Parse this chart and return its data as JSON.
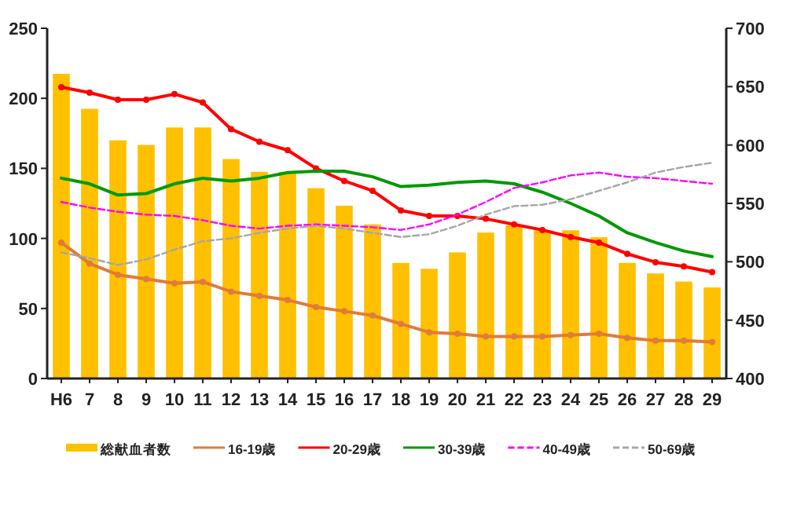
{
  "chart_data": {
    "type": "line",
    "categories": [
      "H6",
      "7",
      "8",
      "9",
      "10",
      "11",
      "12",
      "13",
      "14",
      "15",
      "16",
      "17",
      "18",
      "19",
      "20",
      "21",
      "22",
      "23",
      "24",
      "25",
      "26",
      "27",
      "28",
      "29"
    ],
    "ylim": [
      0,
      250
    ],
    "yticks": [
      0,
      50,
      100,
      150,
      200,
      250
    ],
    "y2lim": [
      400,
      700
    ],
    "y2ticks": [
      400,
      450,
      500,
      550,
      600,
      650,
      700
    ],
    "grid": false,
    "legend": "bottom",
    "series": [
      {
        "name": "総献血者数",
        "type": "bar",
        "axis": "y2",
        "color": "#ffc000",
        "values": [
          661,
          631,
          604,
          600,
          615,
          615,
          588,
          577,
          577,
          563,
          548,
          532,
          499,
          494,
          508,
          525,
          531,
          527,
          527,
          521,
          499,
          490,
          483,
          478
        ]
      },
      {
        "name": "16-19歳",
        "color": "#e07b39",
        "marker": "circle",
        "line_style": "solid",
        "values": [
          97,
          82,
          74,
          71,
          68,
          69,
          62,
          59,
          56,
          51,
          48,
          45,
          39,
          33,
          32,
          30,
          30,
          30,
          31,
          32,
          29,
          27,
          27,
          26
        ]
      },
      {
        "name": "20-29歳",
        "color": "#ff0000",
        "marker": "circle",
        "line_style": "solid",
        "values": [
          208,
          204,
          199,
          199,
          203,
          197,
          178,
          169,
          163,
          150,
          141,
          134,
          120,
          116,
          116,
          114,
          110,
          106,
          101,
          97,
          89,
          83,
          80,
          76
        ]
      },
      {
        "name": "30-39歳",
        "color": "#009900",
        "marker": "none",
        "line_style": "solid",
        "values": [
          143,
          139,
          131,
          132,
          139,
          143,
          141,
          143,
          147,
          148,
          148,
          144,
          137,
          138,
          140,
          141,
          139,
          133,
          125,
          116,
          104,
          97,
          91,
          87
        ]
      },
      {
        "name": "40-49歳",
        "color": "#ff00ff",
        "marker": "none",
        "line_style": "dashed",
        "values": [
          126,
          122,
          119,
          117,
          116,
          113,
          109,
          107,
          109,
          110,
          109,
          108,
          106,
          110,
          117,
          126,
          136,
          140,
          145,
          147,
          144,
          143,
          141,
          139
        ]
      },
      {
        "name": "50-69歳",
        "color": "#a6a6a6",
        "marker": "none",
        "line_style": "dashed",
        "values": [
          90,
          86,
          81,
          85,
          92,
          98,
          100,
          104,
          107,
          109,
          107,
          104,
          101,
          103,
          109,
          117,
          123,
          124,
          128,
          134,
          140,
          147,
          151,
          154
        ]
      }
    ]
  }
}
